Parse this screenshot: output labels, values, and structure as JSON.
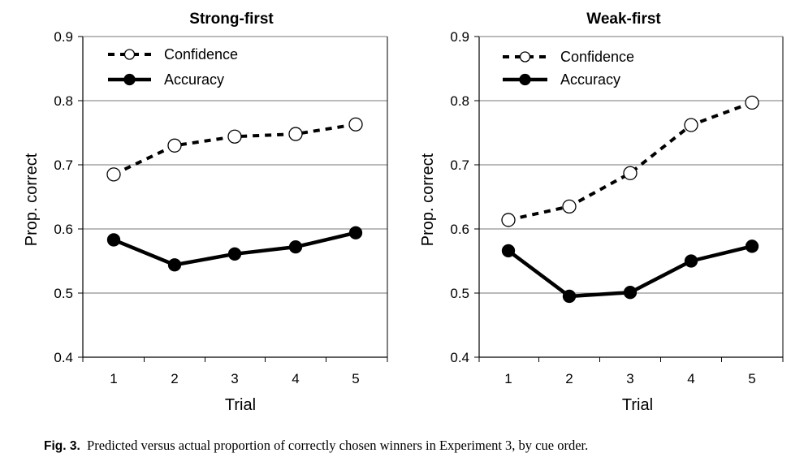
{
  "chart_data": [
    {
      "type": "line",
      "title": "Strong-first",
      "xlabel": "Trial",
      "ylabel": "Prop. correct",
      "categories": [
        "1",
        "2",
        "3",
        "4",
        "5"
      ],
      "ylim": [
        0.4,
        0.9
      ],
      "yticks": [
        "0.4",
        "0.5",
        "0.6",
        "0.7",
        "0.8",
        "0.9"
      ],
      "grid": true,
      "legend": "top-left",
      "series": [
        {
          "name": "Confidence",
          "style": "dashed-open",
          "values": [
            0.685,
            0.73,
            0.744,
            0.748,
            0.763
          ]
        },
        {
          "name": "Accuracy",
          "style": "solid-filled",
          "values": [
            0.583,
            0.544,
            0.561,
            0.572,
            0.594
          ]
        }
      ]
    },
    {
      "type": "line",
      "title": "Weak-first",
      "xlabel": "Trial",
      "ylabel": "Prop. correct",
      "categories": [
        "1",
        "2",
        "3",
        "4",
        "5"
      ],
      "ylim": [
        0.4,
        0.9
      ],
      "yticks": [
        "0.4",
        "0.5",
        "0.6",
        "0.7",
        "0.8",
        "0.9"
      ],
      "grid": true,
      "legend": "top-left",
      "series": [
        {
          "name": "Confidence",
          "style": "dashed-open",
          "values": [
            0.614,
            0.635,
            0.687,
            0.762,
            0.797
          ]
        },
        {
          "name": "Accuracy",
          "style": "solid-filled",
          "values": [
            0.566,
            0.495,
            0.501,
            0.55,
            0.573
          ]
        }
      ]
    }
  ],
  "caption": {
    "label": "Fig. 3.",
    "text": "Predicted versus actual proportion of correctly chosen winners in Experiment 3, by cue order."
  },
  "colors": {
    "ink": "#000000",
    "grid": "#777777",
    "open_marker_fill": "#ffffff"
  }
}
